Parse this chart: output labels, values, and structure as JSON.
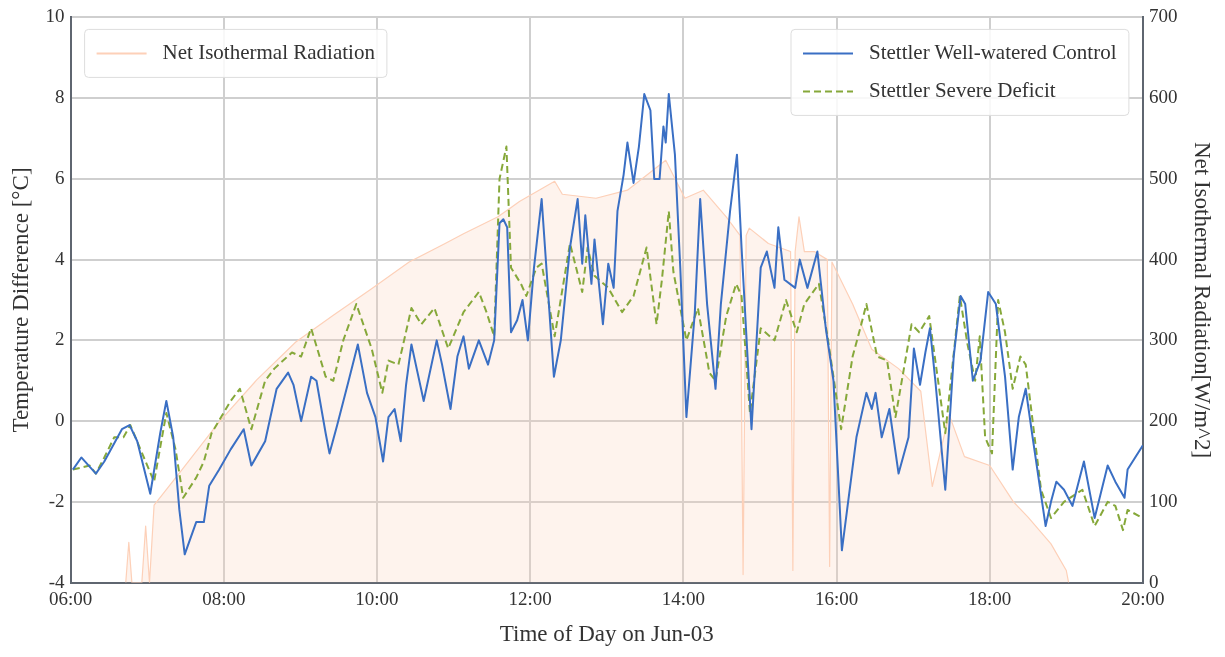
{
  "chart_data": {
    "type": "line",
    "xlabel": "Time of Day on Jun-03",
    "ylabel": "Temperature Difference [°C]",
    "y2label": "Net Isothermal Radiation[W/m^2]",
    "xlim": [
      6,
      20
    ],
    "xticks": [
      {
        "value": 6,
        "label": "06:00"
      },
      {
        "value": 8,
        "label": "08:00"
      },
      {
        "value": 10,
        "label": "10:00"
      },
      {
        "value": 12,
        "label": "12:00"
      },
      {
        "value": 14,
        "label": "14:00"
      },
      {
        "value": 16,
        "label": "16:00"
      },
      {
        "value": 18,
        "label": "18:00"
      },
      {
        "value": 20,
        "label": "20:00"
      }
    ],
    "ylim": [
      -4,
      10
    ],
    "yticks": [
      -4,
      -2,
      0,
      2,
      4,
      6,
      8,
      10
    ],
    "y2lim": [
      0,
      700
    ],
    "y2ticks": [
      0,
      100,
      200,
      300,
      400,
      500,
      600,
      700
    ],
    "grid": true,
    "legend": "top right",
    "marker": "none",
    "series": [
      {
        "name": "Net Isothermal Radiation",
        "type": "area",
        "axis": "y2",
        "color": "#fdd0b8",
        "x": [
          6.72,
          6.76,
          6.8,
          6.93,
          6.98,
          7.03,
          7.09,
          7.44,
          7.94,
          8.43,
          8.94,
          9.43,
          9.93,
          10.42,
          10.89,
          11.13,
          11.58,
          11.86,
          12.32,
          12.42,
          12.86,
          13.27,
          13.77,
          14.02,
          14.26,
          14.56,
          14.74,
          14.78,
          14.82,
          14.86,
          15.11,
          15.4,
          15.43,
          15.46,
          15.51,
          15.58,
          15.71,
          15.88,
          15.91,
          15.94,
          16.21,
          16.46,
          16.81,
          17.1,
          17.25,
          17.47,
          17.67,
          18.0,
          18.31,
          18.5,
          18.8,
          19.0,
          19.03
        ],
        "values": [
          0,
          50,
          0,
          0,
          70,
          0,
          96,
          138,
          199,
          251,
          298,
          331,
          364,
          397,
          420,
          432,
          453,
          472,
          497,
          481,
          476,
          486,
          523,
          476,
          486,
          453,
          430,
          10,
          430,
          439,
          420,
          410,
          15,
          410,
          453,
          410,
          410,
          400,
          20,
          397,
          345,
          289,
          265,
          237,
          119,
          208,
          156,
          145,
          100,
          81,
          48,
          15,
          0
        ]
      },
      {
        "name": "Stettler Well-watered Control",
        "type": "line",
        "line_style": "solid",
        "color": "#3a6fc4",
        "x": [
          6.03,
          6.14,
          6.33,
          6.44,
          6.67,
          6.77,
          6.87,
          7.04,
          7.17,
          7.25,
          7.34,
          7.42,
          7.49,
          7.64,
          7.74,
          7.81,
          7.94,
          8.09,
          8.26,
          8.36,
          8.54,
          8.69,
          8.84,
          8.91,
          9.01,
          9.14,
          9.21,
          9.33,
          9.38,
          9.48,
          9.63,
          9.75,
          9.87,
          9.98,
          10.08,
          10.15,
          10.23,
          10.31,
          10.38,
          10.45,
          10.61,
          10.78,
          10.85,
          10.96,
          11.05,
          11.13,
          11.2,
          11.33,
          11.45,
          11.53,
          11.6,
          11.65,
          11.7,
          11.75,
          11.83,
          11.9,
          11.97,
          12.05,
          12.15,
          12.23,
          12.31,
          12.4,
          12.52,
          12.62,
          12.68,
          12.72,
          12.8,
          12.84,
          12.95,
          13.02,
          13.09,
          13.14,
          13.22,
          13.27,
          13.35,
          13.42,
          13.49,
          13.57,
          13.62,
          13.69,
          13.74,
          13.77,
          13.81,
          13.89,
          13.96,
          14.04,
          14.15,
          14.22,
          14.31,
          14.42,
          14.49,
          14.61,
          14.7,
          14.76,
          14.89,
          15.01,
          15.09,
          15.19,
          15.24,
          15.32,
          15.46,
          15.52,
          15.62,
          15.75,
          15.86,
          15.96,
          16.07,
          16.26,
          16.39,
          16.46,
          16.51,
          16.59,
          16.69,
          16.81,
          16.94,
          17.01,
          17.09,
          17.16,
          17.22,
          17.29,
          17.42,
          17.53,
          17.62,
          17.68,
          17.78,
          17.88,
          17.98,
          18.08,
          18.2,
          18.3,
          18.38,
          18.47,
          18.56,
          18.73,
          18.8,
          18.87,
          18.97,
          19.08,
          19.23,
          19.37,
          19.54,
          19.64,
          19.76,
          19.8,
          20
        ],
        "values": [
          -1.2,
          -0.9,
          -1.3,
          -1.0,
          -0.2,
          -0.1,
          -0.5,
          -1.8,
          -0.3,
          0.5,
          -0.4,
          -2.2,
          -3.3,
          -2.5,
          -2.5,
          -1.6,
          -1.2,
          -0.7,
          -0.2,
          -1.1,
          -0.5,
          0.8,
          1.2,
          0.9,
          0.0,
          1.1,
          1.0,
          -0.3,
          -0.8,
          -0.1,
          1.0,
          1.9,
          0.7,
          0.1,
          -1.0,
          0.1,
          0.3,
          -0.5,
          0.9,
          1.9,
          0.5,
          2.0,
          1.4,
          0.3,
          1.6,
          2.1,
          1.3,
          2.0,
          1.4,
          2.0,
          4.9,
          5.0,
          4.8,
          2.2,
          2.5,
          3.0,
          2.0,
          3.8,
          5.5,
          3.3,
          1.1,
          2.0,
          4.3,
          5.5,
          3.9,
          5.1,
          3.4,
          4.5,
          2.4,
          3.9,
          3.3,
          5.2,
          6.1,
          6.9,
          5.9,
          6.8,
          8.1,
          7.7,
          6.0,
          6.0,
          7.3,
          6.9,
          8.1,
          6.6,
          3.8,
          0.1,
          2.7,
          5.5,
          2.9,
          0.8,
          2.9,
          5.2,
          6.6,
          4.3,
          -0.2,
          3.8,
          4.2,
          3.3,
          4.8,
          3.5,
          3.3,
          4.0,
          3.3,
          4.2,
          2.3,
          1.0,
          -3.2,
          -0.4,
          0.7,
          0.3,
          0.7,
          -0.4,
          0.3,
          -1.3,
          -0.4,
          1.8,
          0.9,
          1.7,
          2.3,
          1.0,
          -1.7,
          1.6,
          3.1,
          2.9,
          1.0,
          1.5,
          3.2,
          2.9,
          1.1,
          -1.2,
          0.1,
          0.8,
          -0.4,
          -2.6,
          -2.0,
          -1.5,
          -1.7,
          -2.1,
          -1.0,
          -2.4,
          -1.1,
          -1.5,
          -1.9,
          -1.2,
          -0.6
        ]
      },
      {
        "name": "Stettler Severe Deficit",
        "type": "line",
        "line_style": "dashed",
        "color": "#86a83a",
        "x": [
          6.03,
          6.25,
          6.33,
          6.44,
          6.57,
          6.69,
          6.78,
          6.89,
          7.09,
          7.25,
          7.37,
          7.47,
          7.64,
          7.74,
          7.84,
          8.09,
          8.21,
          8.36,
          8.54,
          8.66,
          8.89,
          9.01,
          9.14,
          9.33,
          9.43,
          9.56,
          9.73,
          9.93,
          10.07,
          10.15,
          10.28,
          10.33,
          10.45,
          10.58,
          10.75,
          10.93,
          11.13,
          11.33,
          11.43,
          11.53,
          11.6,
          11.69,
          11.75,
          11.88,
          11.95,
          12.08,
          12.15,
          12.32,
          12.52,
          12.68,
          12.75,
          12.84,
          13.02,
          13.2,
          13.35,
          13.52,
          13.65,
          13.72,
          13.81,
          13.87,
          14.04,
          14.19,
          14.34,
          14.42,
          14.56,
          14.69,
          14.76,
          14.87,
          15.01,
          15.19,
          15.34,
          15.48,
          15.58,
          15.77,
          15.89,
          16.06,
          16.21,
          16.31,
          16.39,
          16.53,
          16.66,
          16.77,
          16.98,
          17.08,
          17.21,
          17.42,
          17.61,
          17.71,
          17.81,
          17.87,
          17.94,
          18.03,
          18.11,
          18.2,
          18.3,
          18.4,
          18.47,
          18.67,
          18.8,
          18.97,
          19.21,
          19.37,
          19.54,
          19.64,
          19.74,
          19.8,
          20
        ],
        "values": [
          -1.2,
          -1.1,
          -1.3,
          -0.9,
          -0.4,
          -0.4,
          -0.1,
          -0.6,
          -1.5,
          0.2,
          -0.7,
          -1.9,
          -1.4,
          -1.0,
          -0.3,
          0.5,
          0.8,
          -0.2,
          1.0,
          1.3,
          1.7,
          1.6,
          2.3,
          1.1,
          1.0,
          2.0,
          2.9,
          1.8,
          0.7,
          1.5,
          1.4,
          1.8,
          2.8,
          2.4,
          2.8,
          1.8,
          2.7,
          3.2,
          2.7,
          2.1,
          6.0,
          6.8,
          3.8,
          3.4,
          3.1,
          3.8,
          3.9,
          2.1,
          4.4,
          3.2,
          4.3,
          3.6,
          3.3,
          2.7,
          3.1,
          4.3,
          2.4,
          3.5,
          5.2,
          3.7,
          2.0,
          2.8,
          1.2,
          1.0,
          2.6,
          3.4,
          3.1,
          0.2,
          2.3,
          2.0,
          3.0,
          2.2,
          2.9,
          3.4,
          2.0,
          -0.2,
          1.6,
          2.3,
          2.9,
          1.6,
          1.5,
          0.1,
          2.4,
          2.2,
          2.6,
          -0.3,
          3.1,
          1.9,
          1.0,
          2.1,
          -0.4,
          -0.8,
          3.0,
          2.2,
          0.8,
          1.6,
          1.4,
          -1.7,
          -2.4,
          -2.0,
          -1.7,
          -2.6,
          -2.0,
          -2.1,
          -2.7,
          -2.2,
          -2.4
        ]
      }
    ]
  }
}
